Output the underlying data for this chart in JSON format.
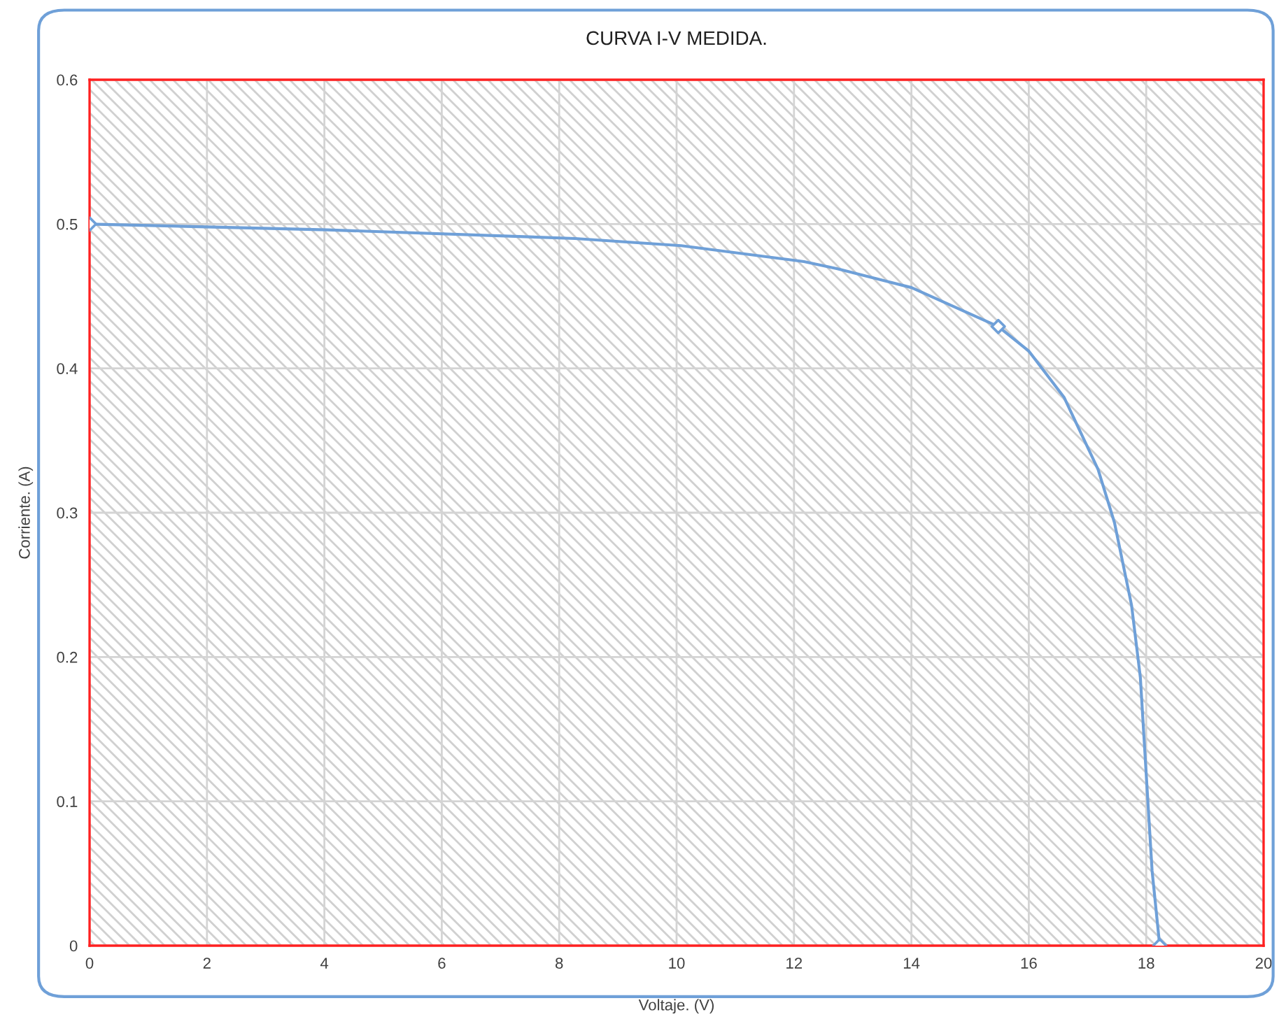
{
  "chart_data": {
    "type": "line",
    "title": "CURVA I-V MEDIDA.",
    "xlabel": "Voltaje. (V)",
    "ylabel": "Corriente. (A)",
    "xlim": [
      0,
      20
    ],
    "xticks": [
      0,
      2,
      4,
      6,
      8,
      10,
      12,
      14,
      16,
      18,
      20
    ],
    "ylim": [
      0,
      0.6
    ],
    "yticks": [
      0,
      0.1,
      0.2,
      0.3,
      0.4,
      0.5,
      0.6
    ],
    "grid": true,
    "series": [
      {
        "color": "#6fa0d8",
        "marker": "none",
        "x": [
          0,
          4.05,
          8.27,
          10.08,
          12.17,
          12.74,
          14,
          15.48,
          16,
          16.6,
          17.18,
          17.46,
          17.75,
          17.9,
          18.0,
          18.1,
          18.23
        ],
        "values": [
          0.5,
          0.496,
          0.49,
          0.485,
          0.474,
          0.469,
          0.456,
          0.429,
          0.412,
          0.38,
          0.33,
          0.293,
          0.236,
          0.186,
          0.119,
          0.052,
          0
        ]
      },
      {
        "type": "scatter",
        "color": "#6fa0d8",
        "marker": "diamond",
        "x": [
          0,
          15.48,
          18.23
        ],
        "values": [
          0.5,
          0.429,
          0
        ]
      }
    ]
  }
}
